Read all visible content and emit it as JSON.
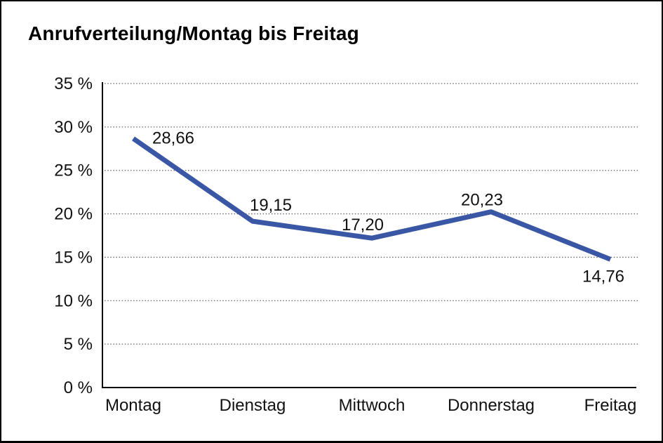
{
  "page": {
    "background_color": "#ffffff",
    "border_color": "#000000"
  },
  "chart_data": {
    "type": "line",
    "title": "Anrufverteilung/Montag bis Freitag",
    "categories": [
      "Montag",
      "Dienstag",
      "Mittwoch",
      "Donnerstag",
      "Freitag"
    ],
    "values": [
      28.66,
      19.15,
      17.2,
      20.23,
      14.76
    ],
    "value_labels": [
      "28,66",
      "19,15",
      "17,20",
      "20,23",
      "14,76"
    ],
    "xlabel": "",
    "ylabel": "",
    "ylim": [
      0,
      35
    ],
    "ytick_step": 5,
    "ytick_labels": [
      "0 %",
      "5 %",
      "10 %",
      "15 %",
      "20 %",
      "25 %",
      "30 %",
      "35 %"
    ],
    "grid": "horizontal-dotted",
    "grid_color": "#666666",
    "axis_color": "#000000",
    "line_color": "#3A57A5",
    "text_color": "#111111",
    "legend": "none"
  }
}
